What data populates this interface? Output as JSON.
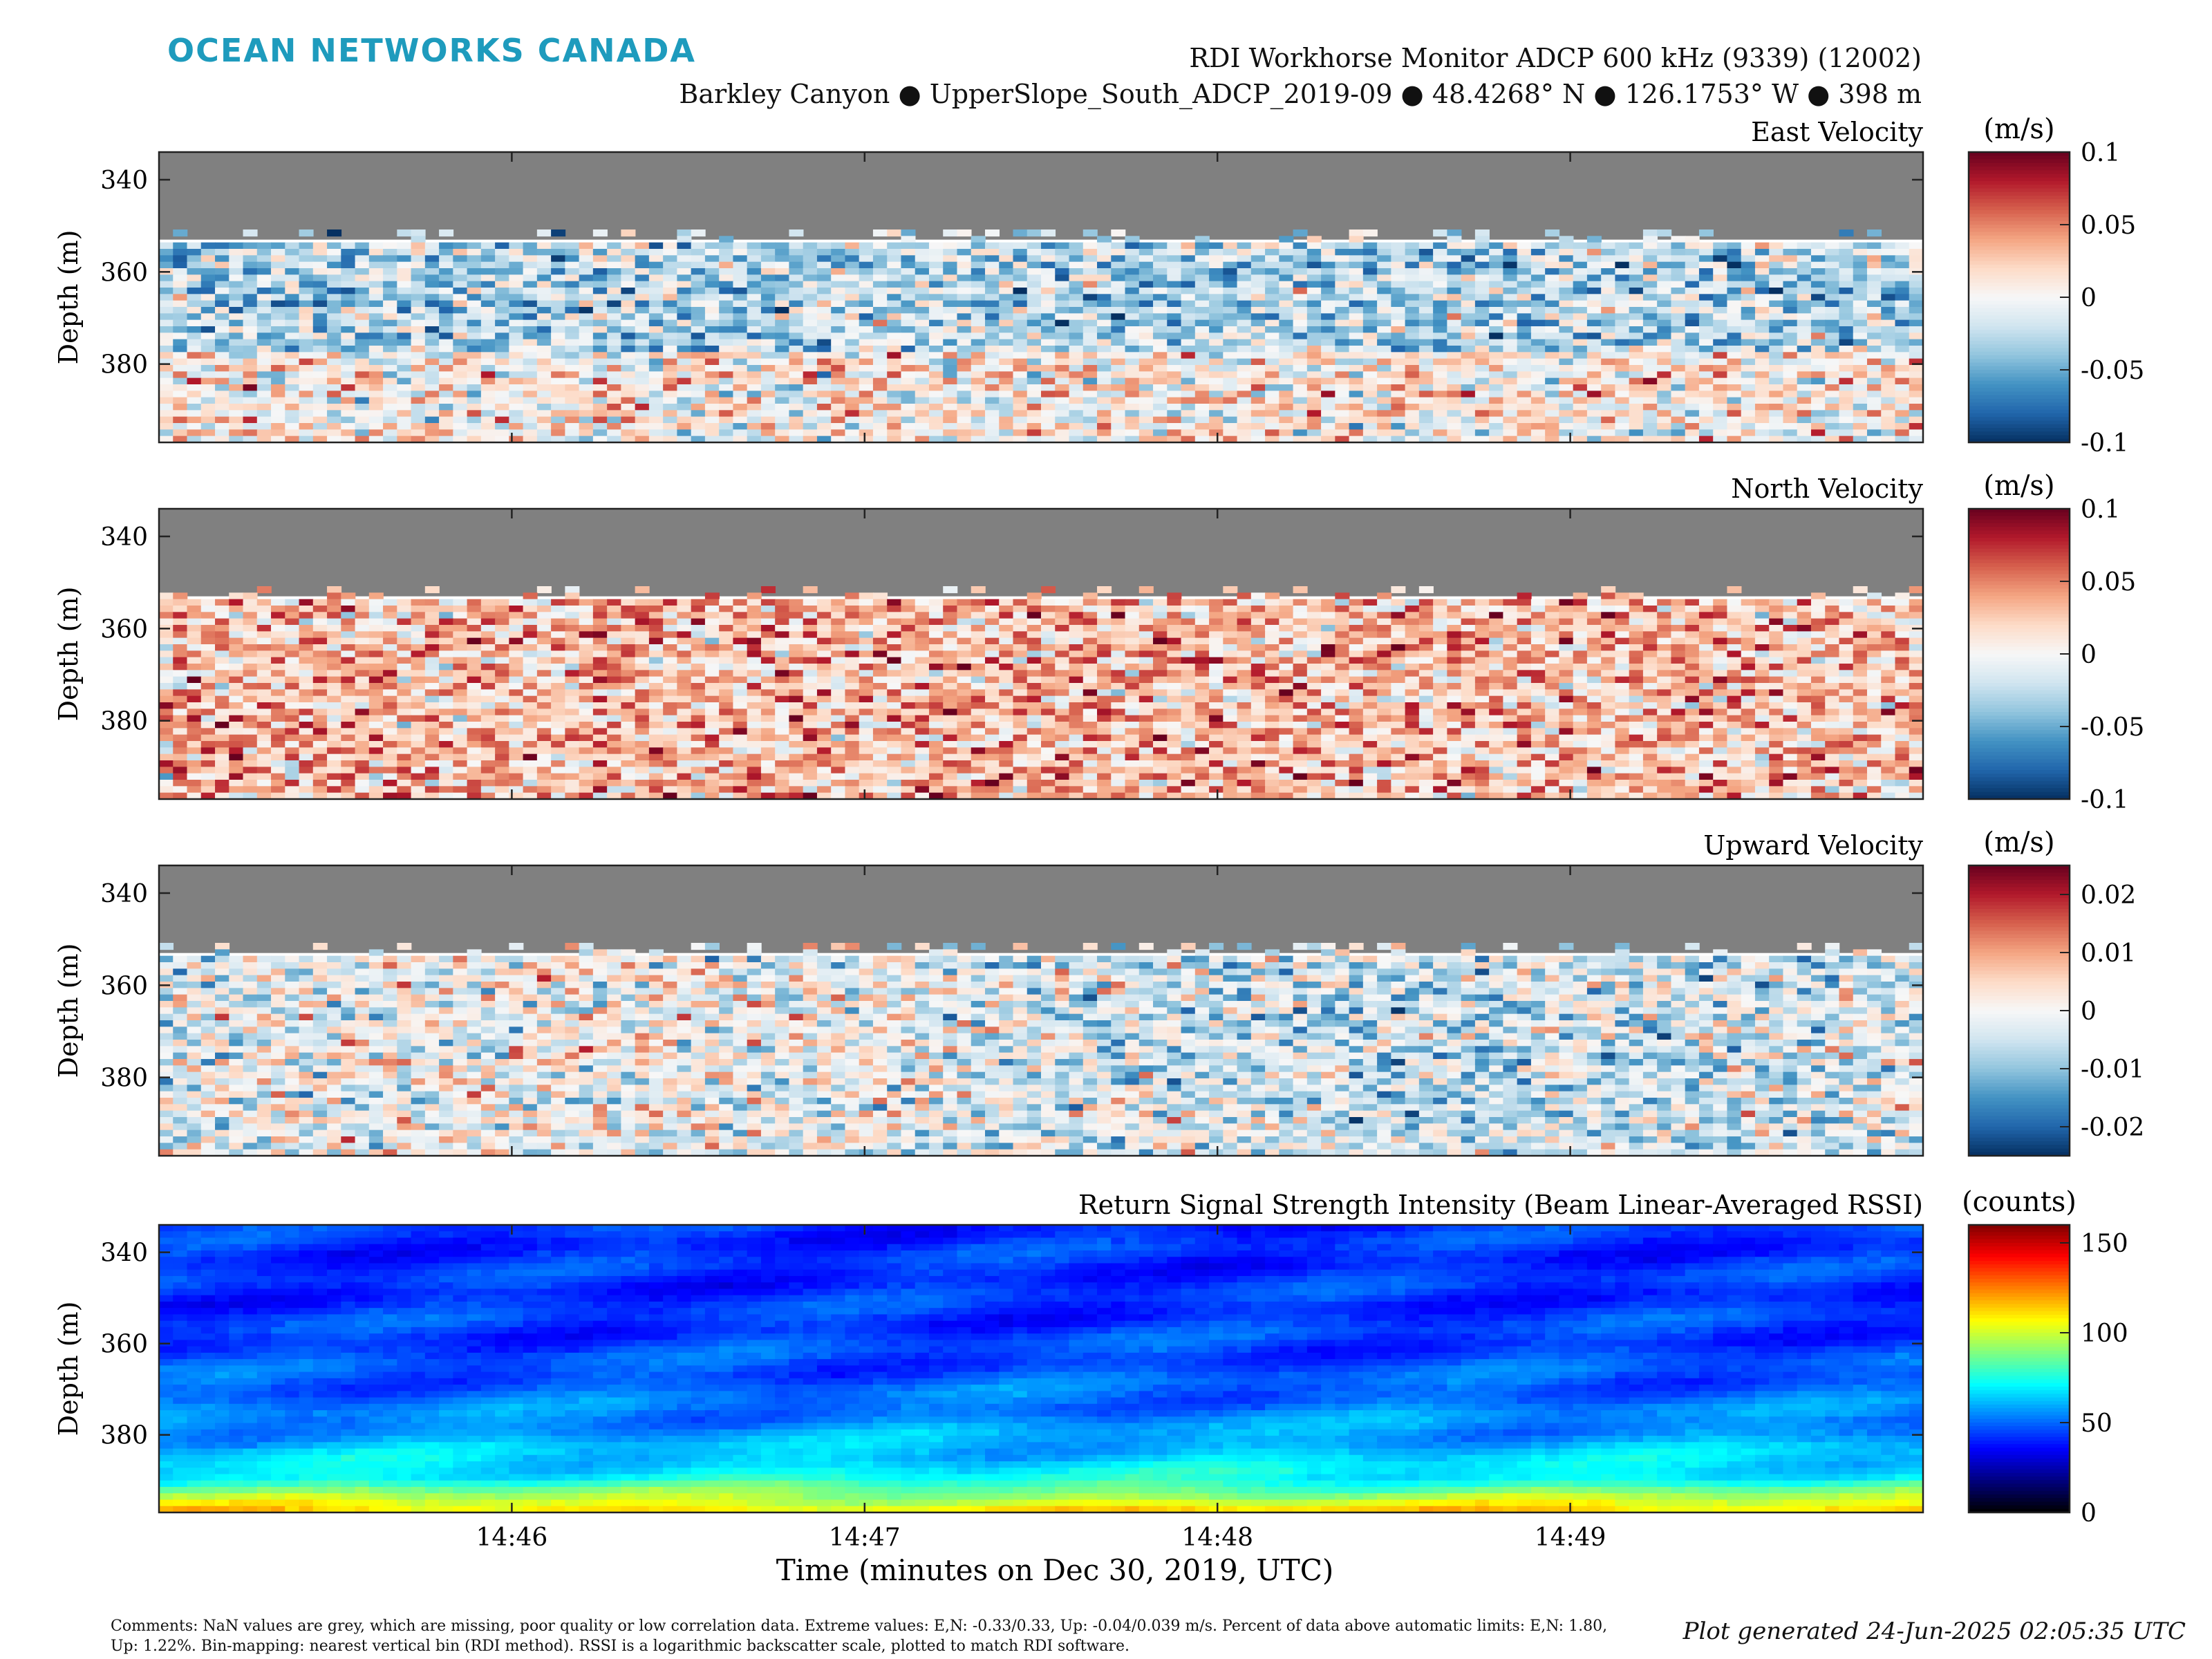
{
  "brand": "OCEAN NETWORKS CANADA",
  "header": {
    "title": "RDI Workhorse Monitor ADCP 600 kHz (9339) (12002)",
    "subtitle": "Barkley Canyon ● UpperSlope_South_ADCP_2019-09 ● 48.4268° N ● 126.1753° W ● 398 m"
  },
  "footer": {
    "comments": "Comments: NaN values are grey, which are missing, poor quality or low correlation data. Extreme values: E,N: -0.33/0.33, Up: -0.04/0.039 m/s. Percent of data above automatic limits: E,N: 1.80, Up: 1.22%. Bin-mapping: nearest vertical bin (RDI method). RSSI is a logarithmic backscatter scale, plotted to match RDI software.",
    "generated": "Plot generated 24-Jun-2025 02:05:35 UTC"
  },
  "colors": {
    "nan_grey": "#808080",
    "diverging": [
      "#053061",
      "#2166ac",
      "#4393c3",
      "#92c5de",
      "#d1e5f0",
      "#f7f7f7",
      "#fddbc7",
      "#f4a582",
      "#d6604d",
      "#b2182b",
      "#67001f"
    ],
    "rssi": [
      "#000000",
      "#00007f",
      "#0000ff",
      "#0080ff",
      "#00ffff",
      "#80ff80",
      "#ffff00",
      "#ff8000",
      "#ff0000",
      "#800000"
    ]
  },
  "chart_data": [
    {
      "type": "heatmap",
      "title": "East Velocity",
      "xlabel": "",
      "ylabel": "Depth (m)",
      "y_ticks": [
        "340",
        "360",
        "380"
      ],
      "ylim": [
        334,
        397
      ],
      "y_reversed": true,
      "x_ticks": [
        "14:46",
        "14:47",
        "14:48",
        "14:49"
      ],
      "x_tick_minutes": [
        46,
        47,
        48,
        49
      ],
      "xlim_minutes": [
        45.0,
        50.0
      ],
      "colorbar_label": "(m/s)",
      "colorbar_ticks": [
        "0.1",
        "0.05",
        "0",
        "-0.05",
        "-0.1"
      ],
      "clim": [
        -0.1,
        0.1
      ],
      "colormap": "diverging",
      "nan_above_depth_m": 353,
      "pattern": "mostly negative (blue) in 355–375 m, mixed near bottom"
    },
    {
      "type": "heatmap",
      "title": "North Velocity",
      "xlabel": "",
      "ylabel": "Depth (m)",
      "y_ticks": [
        "340",
        "360",
        "380"
      ],
      "ylim": [
        334,
        397
      ],
      "y_reversed": true,
      "x_ticks": [
        "14:46",
        "14:47",
        "14:48",
        "14:49"
      ],
      "x_tick_minutes": [
        46,
        47,
        48,
        49
      ],
      "xlim_minutes": [
        45.0,
        50.0
      ],
      "colorbar_label": "(m/s)",
      "colorbar_ticks": [
        "0.1",
        "0.05",
        "0",
        "-0.05",
        "-0.1"
      ],
      "clim": [
        -0.1,
        0.1
      ],
      "colormap": "diverging",
      "nan_above_depth_m": 353,
      "pattern": "predominantly positive (red) throughout"
    },
    {
      "type": "heatmap",
      "title": "Upward Velocity",
      "xlabel": "",
      "ylabel": "Depth (m)",
      "y_ticks": [
        "340",
        "360",
        "380"
      ],
      "ylim": [
        334,
        397
      ],
      "y_reversed": true,
      "x_ticks": [
        "14:46",
        "14:47",
        "14:48",
        "14:49"
      ],
      "x_tick_minutes": [
        46,
        47,
        48,
        49
      ],
      "xlim_minutes": [
        45.0,
        50.0
      ],
      "colorbar_label": "(m/s)",
      "colorbar_ticks": [
        "0.02",
        "0.01",
        "0",
        "-0.01",
        "-0.02"
      ],
      "clim": [
        -0.025,
        0.025
      ],
      "colormap": "diverging",
      "nan_above_depth_m": 353,
      "pattern": "mixed, slightly negative mid-depth"
    },
    {
      "type": "heatmap",
      "title": "Return Signal Strength Intensity (Beam Linear-Averaged RSSI)",
      "xlabel": "Time (minutes on Dec 30, 2019, UTC)",
      "ylabel": "Depth (m)",
      "y_ticks": [
        "340",
        "360",
        "380"
      ],
      "ylim": [
        334,
        397
      ],
      "y_reversed": true,
      "x_ticks": [
        "14:46",
        "14:47",
        "14:48",
        "14:49"
      ],
      "x_tick_minutes": [
        46,
        47,
        48,
        49
      ],
      "xlim_minutes": [
        45.0,
        50.0
      ],
      "colorbar_label": "(counts)",
      "colorbar_ticks": [
        "150",
        "100",
        "50",
        "0"
      ],
      "clim": [
        0,
        160
      ],
      "colormap": "rssi",
      "pattern": "~45 counts at top rising to ~130–150 counts near 395 m"
    }
  ]
}
